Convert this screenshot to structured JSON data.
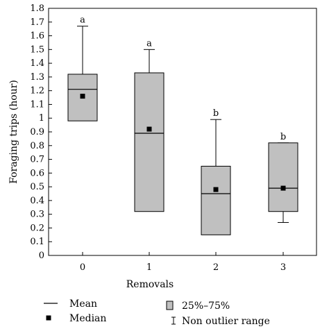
{
  "chart_data": {
    "type": "boxplot",
    "xlabel": "Removals",
    "ylabel": "Foraging trips (hour)",
    "ylim": [
      0,
      1.8
    ],
    "y_ticks": [
      "0",
      "0.1",
      "0.2",
      "0.3",
      "0.4",
      "0.5",
      "0.6",
      "0.7",
      "0.8",
      "0.9",
      "1",
      "1.1",
      "1.2",
      "1.3",
      "1.4",
      "1.5",
      "1.6",
      "1.7",
      "1.8"
    ],
    "categories": [
      "0",
      "1",
      "2",
      "3"
    ],
    "boxes": [
      {
        "category": "0",
        "whisker_low": 0.98,
        "q1": 0.98,
        "mean": 1.21,
        "median": 1.16,
        "q3": 1.32,
        "whisker_high": 1.67,
        "group_letter": "a"
      },
      {
        "category": "1",
        "whisker_low": 0.32,
        "q1": 0.32,
        "mean": 0.89,
        "median": 0.92,
        "q3": 1.33,
        "whisker_high": 1.5,
        "group_letter": "a"
      },
      {
        "category": "2",
        "whisker_low": 0.15,
        "q1": 0.15,
        "mean": 0.45,
        "median": 0.48,
        "q3": 0.65,
        "whisker_high": 0.99,
        "group_letter": "b"
      },
      {
        "category": "3",
        "whisker_low": 0.24,
        "q1": 0.32,
        "mean": 0.49,
        "median": 0.49,
        "q3": 0.82,
        "whisker_high": 0.82,
        "group_letter": "b"
      }
    ],
    "grid": false,
    "legend": {
      "placement": "bottom",
      "items": [
        {
          "symbol": "line",
          "label": "Mean"
        },
        {
          "symbol": "square",
          "label": "Median"
        },
        {
          "symbol": "box",
          "label": "25%–75%"
        },
        {
          "symbol": "whisker",
          "label": "Non outlier range"
        }
      ]
    },
    "box_fill": "#c0c0c0",
    "stroke_color": "#000000"
  }
}
